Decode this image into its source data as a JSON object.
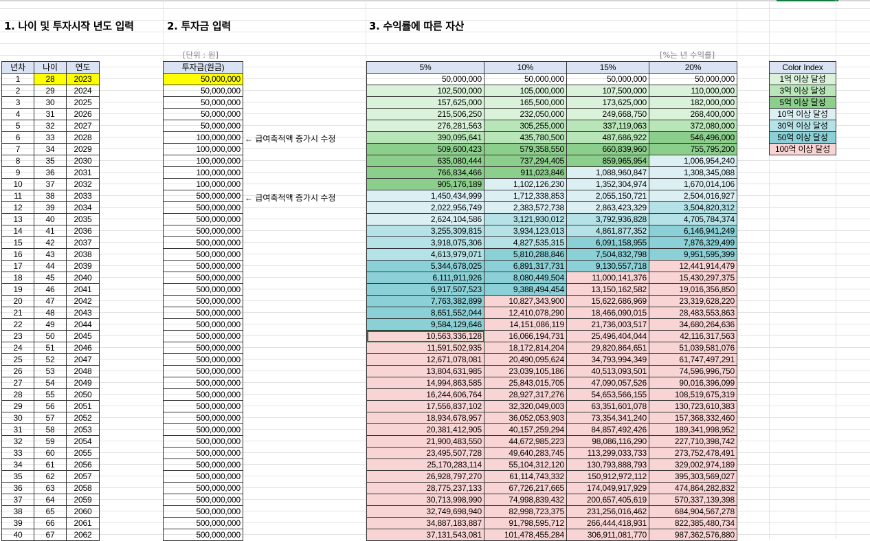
{
  "headers": {
    "section1": "1. 나이 및 투자시작 년도 입력",
    "section2": "2. 투자금 입력",
    "section3": "3. 수익률에 따른 자산"
  },
  "units": {
    "invest": "[단위 : 원]",
    "rate": "[%는 년 수익률]"
  },
  "notes": {
    "raise": "← 급여축적액 증가시 수정"
  },
  "left_table": {
    "columns": [
      "년차",
      "나이",
      "연도"
    ]
  },
  "invest_table": {
    "column": "투자금(원금)"
  },
  "asset_table": {
    "columns": [
      "5%",
      "10%",
      "15%",
      "20%"
    ]
  },
  "legend": {
    "title": "Color Index",
    "items": [
      "1억 이상 달성",
      "3억 이상 달성",
      "5억 이상 달성",
      "10억 이상 달성",
      "30억 이상 달성",
      "50억 이상 달성",
      "100억 이상 달성"
    ]
  },
  "colors": {
    "ge_1억": "#d9f2d9",
    "ge_3억": "#b8e6b8",
    "ge_5억": "#8ccf8c",
    "ge_10억": "#dcf0f4",
    "ge_30억": "#b5e2e7",
    "ge_50억": "#8ad0d6",
    "ge_100억": "#f9d4d4",
    "input": "#ffff00",
    "header": "#dae3f3"
  },
  "rows": [
    {
      "n": "1",
      "age": "28",
      "year": "2023",
      "invest": "50,000,000",
      "a": [
        "50,000,000",
        "50,000,000",
        "50,000,000",
        "50,000,000"
      ]
    },
    {
      "n": "2",
      "age": "29",
      "year": "2024",
      "invest": "50,000,000",
      "a": [
        "102,500,000",
        "105,000,000",
        "107,500,000",
        "110,000,000"
      ]
    },
    {
      "n": "3",
      "age": "30",
      "year": "2025",
      "invest": "50,000,000",
      "a": [
        "157,625,000",
        "165,500,000",
        "173,625,000",
        "182,000,000"
      ]
    },
    {
      "n": "4",
      "age": "31",
      "year": "2026",
      "invest": "50,000,000",
      "a": [
        "215,506,250",
        "232,050,000",
        "249,668,750",
        "268,400,000"
      ]
    },
    {
      "n": "5",
      "age": "32",
      "year": "2027",
      "invest": "50,000,000",
      "a": [
        "276,281,563",
        "305,255,000",
        "337,119,063",
        "372,080,000"
      ]
    },
    {
      "n": "6",
      "age": "33",
      "year": "2028",
      "invest": "100,000,000",
      "a": [
        "390,095,641",
        "435,780,500",
        "487,686,922",
        "546,496,000"
      ]
    },
    {
      "n": "7",
      "age": "34",
      "year": "2029",
      "invest": "100,000,000",
      "a": [
        "509,600,423",
        "579,358,550",
        "660,839,960",
        "755,795,200"
      ]
    },
    {
      "n": "8",
      "age": "35",
      "year": "2030",
      "invest": "100,000,000",
      "a": [
        "635,080,444",
        "737,294,405",
        "859,965,954",
        "1,006,954,240"
      ]
    },
    {
      "n": "9",
      "age": "36",
      "year": "2031",
      "invest": "100,000,000",
      "a": [
        "766,834,466",
        "911,023,846",
        "1,088,960,847",
        "1,308,345,088"
      ]
    },
    {
      "n": "10",
      "age": "37",
      "year": "2032",
      "invest": "100,000,000",
      "a": [
        "905,176,189",
        "1,102,126,230",
        "1,352,304,974",
        "1,670,014,106"
      ]
    },
    {
      "n": "11",
      "age": "38",
      "year": "2033",
      "invest": "500,000,000",
      "a": [
        "1,450,434,999",
        "1,712,338,853",
        "2,055,150,721",
        "2,504,016,927"
      ]
    },
    {
      "n": "12",
      "age": "39",
      "year": "2034",
      "invest": "500,000,000",
      "a": [
        "2,022,956,749",
        "2,383,572,738",
        "2,863,423,329",
        "3,504,820,312"
      ]
    },
    {
      "n": "13",
      "age": "40",
      "year": "2035",
      "invest": "500,000,000",
      "a": [
        "2,624,104,586",
        "3,121,930,012",
        "3,792,936,828",
        "4,705,784,374"
      ]
    },
    {
      "n": "14",
      "age": "41",
      "year": "2036",
      "invest": "500,000,000",
      "a": [
        "3,255,309,815",
        "3,934,123,013",
        "4,861,877,352",
        "6,146,941,249"
      ]
    },
    {
      "n": "15",
      "age": "42",
      "year": "2037",
      "invest": "500,000,000",
      "a": [
        "3,918,075,306",
        "4,827,535,315",
        "6,091,158,955",
        "7,876,329,499"
      ]
    },
    {
      "n": "16",
      "age": "43",
      "year": "2038",
      "invest": "500,000,000",
      "a": [
        "4,613,979,071",
        "5,810,288,846",
        "7,504,832,798",
        "9,951,595,399"
      ]
    },
    {
      "n": "17",
      "age": "44",
      "year": "2039",
      "invest": "500,000,000",
      "a": [
        "5,344,678,025",
        "6,891,317,731",
        "9,130,557,718",
        "12,441,914,479"
      ]
    },
    {
      "n": "18",
      "age": "45",
      "year": "2040",
      "invest": "500,000,000",
      "a": [
        "6,111,911,926",
        "8,080,449,504",
        "11,000,141,376",
        "15,430,297,375"
      ]
    },
    {
      "n": "19",
      "age": "46",
      "year": "2041",
      "invest": "500,000,000",
      "a": [
        "6,917,507,523",
        "9,388,494,454",
        "13,150,162,582",
        "19,016,356,850"
      ]
    },
    {
      "n": "20",
      "age": "47",
      "year": "2042",
      "invest": "500,000,000",
      "a": [
        "7,763,382,899",
        "10,827,343,900",
        "15,622,686,969",
        "23,319,628,220"
      ]
    },
    {
      "n": "21",
      "age": "48",
      "year": "2043",
      "invest": "500,000,000",
      "a": [
        "8,651,552,044",
        "12,410,078,290",
        "18,466,090,015",
        "28,483,553,863"
      ]
    },
    {
      "n": "22",
      "age": "49",
      "year": "2044",
      "invest": "500,000,000",
      "a": [
        "9,584,129,646",
        "14,151,086,119",
        "21,736,003,517",
        "34,680,264,636"
      ]
    },
    {
      "n": "23",
      "age": "50",
      "year": "2045",
      "invest": "500,000,000",
      "a": [
        "10,563,336,128",
        "16,066,194,731",
        "25,496,404,044",
        "42,116,317,563"
      ]
    },
    {
      "n": "24",
      "age": "51",
      "year": "2046",
      "invest": "500,000,000",
      "a": [
        "11,591,502,935",
        "18,172,814,204",
        "29,820,864,651",
        "51,039,581,076"
      ]
    },
    {
      "n": "25",
      "age": "52",
      "year": "2047",
      "invest": "500,000,000",
      "a": [
        "12,671,078,081",
        "20,490,095,624",
        "34,793,994,349",
        "61,747,497,291"
      ]
    },
    {
      "n": "26",
      "age": "53",
      "year": "2048",
      "invest": "500,000,000",
      "a": [
        "13,804,631,985",
        "23,039,105,186",
        "40,513,093,501",
        "74,596,996,750"
      ]
    },
    {
      "n": "27",
      "age": "54",
      "year": "2049",
      "invest": "500,000,000",
      "a": [
        "14,994,863,585",
        "25,843,015,705",
        "47,090,057,526",
        "90,016,396,099"
      ]
    },
    {
      "n": "28",
      "age": "55",
      "year": "2050",
      "invest": "500,000,000",
      "a": [
        "16,244,606,764",
        "28,927,317,276",
        "54,653,566,155",
        "108,519,675,319"
      ]
    },
    {
      "n": "29",
      "age": "56",
      "year": "2051",
      "invest": "500,000,000",
      "a": [
        "17,556,837,102",
        "32,320,049,003",
        "63,351,601,078",
        "130,723,610,383"
      ]
    },
    {
      "n": "30",
      "age": "57",
      "year": "2052",
      "invest": "500,000,000",
      "a": [
        "18,934,678,957",
        "36,052,053,903",
        "73,354,341,240",
        "157,368,332,460"
      ]
    },
    {
      "n": "31",
      "age": "58",
      "year": "2053",
      "invest": "500,000,000",
      "a": [
        "20,381,412,905",
        "40,157,259,294",
        "84,857,492,426",
        "189,341,998,952"
      ]
    },
    {
      "n": "32",
      "age": "59",
      "year": "2054",
      "invest": "500,000,000",
      "a": [
        "21,900,483,550",
        "44,672,985,223",
        "98,086,116,290",
        "227,710,398,742"
      ]
    },
    {
      "n": "33",
      "age": "60",
      "year": "2055",
      "invest": "500,000,000",
      "a": [
        "23,495,507,728",
        "49,640,283,745",
        "113,299,033,733",
        "273,752,478,491"
      ]
    },
    {
      "n": "34",
      "age": "61",
      "year": "2056",
      "invest": "500,000,000",
      "a": [
        "25,170,283,114",
        "55,104,312,120",
        "130,793,888,793",
        "329,002,974,189"
      ]
    },
    {
      "n": "35",
      "age": "62",
      "year": "2057",
      "invest": "500,000,000",
      "a": [
        "26,928,797,270",
        "61,114,743,332",
        "150,912,972,112",
        "395,303,569,027"
      ]
    },
    {
      "n": "36",
      "age": "63",
      "year": "2058",
      "invest": "500,000,000",
      "a": [
        "28,775,237,133",
        "67,726,217,665",
        "174,049,917,929",
        "474,864,282,832"
      ]
    },
    {
      "n": "37",
      "age": "64",
      "year": "2059",
      "invest": "500,000,000",
      "a": [
        "30,713,998,990",
        "74,998,839,432",
        "200,657,405,619",
        "570,337,139,398"
      ]
    },
    {
      "n": "38",
      "age": "65",
      "year": "2060",
      "invest": "500,000,000",
      "a": [
        "32,749,698,940",
        "82,998,723,375",
        "231,256,016,462",
        "684,904,567,278"
      ]
    },
    {
      "n": "39",
      "age": "66",
      "year": "2061",
      "invest": "500,000,000",
      "a": [
        "34,887,183,887",
        "91,798,595,712",
        "266,444,418,931",
        "822,385,480,734"
      ]
    },
    {
      "n": "40",
      "age": "67",
      "year": "2062",
      "invest": "500,000,000",
      "a": [
        "37,131,543,081",
        "101,478,455,284",
        "306,911,081,770",
        "987,362,576,880"
      ]
    }
  ]
}
